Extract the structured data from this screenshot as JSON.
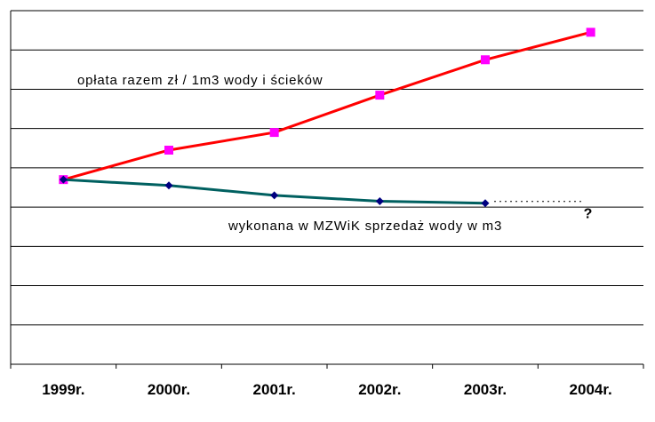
{
  "chart_data": {
    "type": "line",
    "categories": [
      "1999r.",
      "2000r.",
      "2001r.",
      "2002r.",
      "2003r.",
      "2004r."
    ],
    "series": [
      {
        "name": "opłata razem zł / 1m3 wody i ścieków",
        "values": [
          4.7,
          5.45,
          5.9,
          6.85,
          7.75,
          8.45
        ],
        "color": "#ff0000",
        "marker_color": "#ff00ff",
        "marker": "square"
      },
      {
        "name": "wykonana w MZWiK sprzedaż wody w m3",
        "values": [
          4.7,
          4.55,
          4.3,
          4.15,
          4.1,
          null
        ],
        "color": "#006060",
        "marker_color": "#000080",
        "marker": "diamond",
        "projection": "dotted",
        "projection_label": "?"
      }
    ],
    "ylim": [
      0,
      9
    ],
    "grid": true,
    "y_tick_labels": false,
    "legend": "inline labels"
  }
}
